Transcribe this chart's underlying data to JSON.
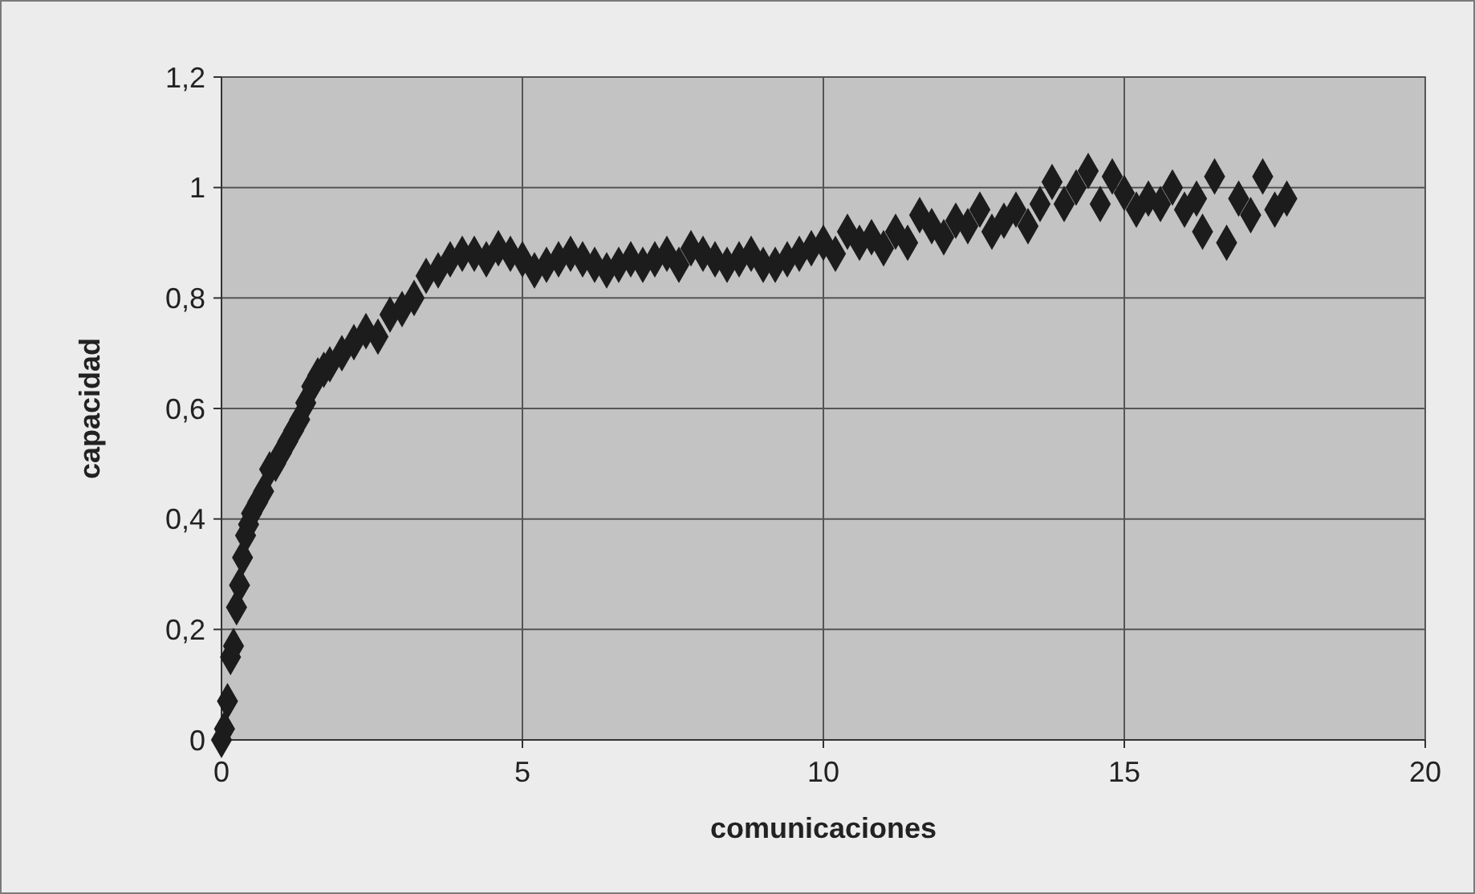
{
  "chart_data": {
    "type": "scatter",
    "xlabel": "comunicaciones",
    "ylabel": "capacidad",
    "xlim": [
      0,
      20
    ],
    "xticks": [
      0,
      5,
      10,
      15,
      20
    ],
    "ylim": [
      0,
      1.2
    ],
    "yticks": [
      0,
      {
        "value": 0.2,
        "label": "0,2"
      },
      {
        "value": 0.4,
        "label": "0,4"
      },
      {
        "value": 0.6,
        "label": "0,6"
      },
      {
        "value": 0.8,
        "label": "0,8"
      },
      1,
      {
        "value": 1.2,
        "label": "1,2"
      }
    ],
    "grid": true,
    "marker": "diamond",
    "series": [
      {
        "color": "#1c1c1c",
        "x": [
          0,
          0.05,
          0.1,
          0.15,
          0.2,
          0.25,
          0.3,
          0.35,
          0.4,
          0.45,
          0.5,
          0.6,
          0.7,
          0.8,
          0.9,
          1.0,
          1.1,
          1.2,
          1.3,
          1.4,
          1.5,
          1.6,
          1.7,
          1.8,
          2.0,
          2.2,
          2.4,
          2.6,
          2.8,
          3.0,
          3.2,
          3.4,
          3.6,
          3.8,
          4.0,
          4.2,
          4.4,
          4.6,
          4.8,
          5.0,
          5.2,
          5.4,
          5.6,
          5.8,
          6.0,
          6.2,
          6.4,
          6.6,
          6.8,
          7.0,
          7.2,
          7.4,
          7.6,
          7.8,
          8.0,
          8.2,
          8.4,
          8.6,
          8.8,
          9.0,
          9.2,
          9.4,
          9.6,
          9.8,
          10.0,
          10.2,
          10.4,
          10.6,
          10.8,
          11.0,
          11.2,
          11.4,
          11.6,
          11.8,
          12.0,
          12.2,
          12.4,
          12.6,
          12.8,
          13.0,
          13.2,
          13.4,
          13.6,
          13.8,
          14.0,
          14.2,
          14.4,
          14.6,
          14.8,
          15.0,
          15.2,
          15.4,
          15.6,
          15.8,
          16.0,
          16.2,
          16.3,
          16.5,
          16.7,
          16.9,
          17.1,
          17.3,
          17.5,
          17.7
        ],
        "values": [
          0,
          0.02,
          0.07,
          0.15,
          0.17,
          0.24,
          0.28,
          0.33,
          0.37,
          0.39,
          0.41,
          0.43,
          0.45,
          0.49,
          0.5,
          0.52,
          0.54,
          0.56,
          0.58,
          0.61,
          0.64,
          0.66,
          0.67,
          0.68,
          0.7,
          0.72,
          0.74,
          0.73,
          0.77,
          0.78,
          0.8,
          0.84,
          0.85,
          0.87,
          0.88,
          0.88,
          0.87,
          0.89,
          0.88,
          0.87,
          0.85,
          0.86,
          0.87,
          0.88,
          0.87,
          0.86,
          0.85,
          0.86,
          0.87,
          0.86,
          0.87,
          0.88,
          0.86,
          0.89,
          0.88,
          0.87,
          0.86,
          0.87,
          0.88,
          0.86,
          0.86,
          0.87,
          0.88,
          0.89,
          0.9,
          0.88,
          0.92,
          0.9,
          0.91,
          0.89,
          0.92,
          0.9,
          0.95,
          0.93,
          0.91,
          0.94,
          0.93,
          0.96,
          0.92,
          0.94,
          0.96,
          0.93,
          0.97,
          1.01,
          0.97,
          1.0,
          1.03,
          0.97,
          1.02,
          0.99,
          0.96,
          0.98,
          0.97,
          1.0,
          0.96,
          0.98,
          0.92,
          1.02,
          0.9,
          0.98,
          0.95,
          1.02,
          0.96,
          0.98
        ]
      }
    ]
  }
}
